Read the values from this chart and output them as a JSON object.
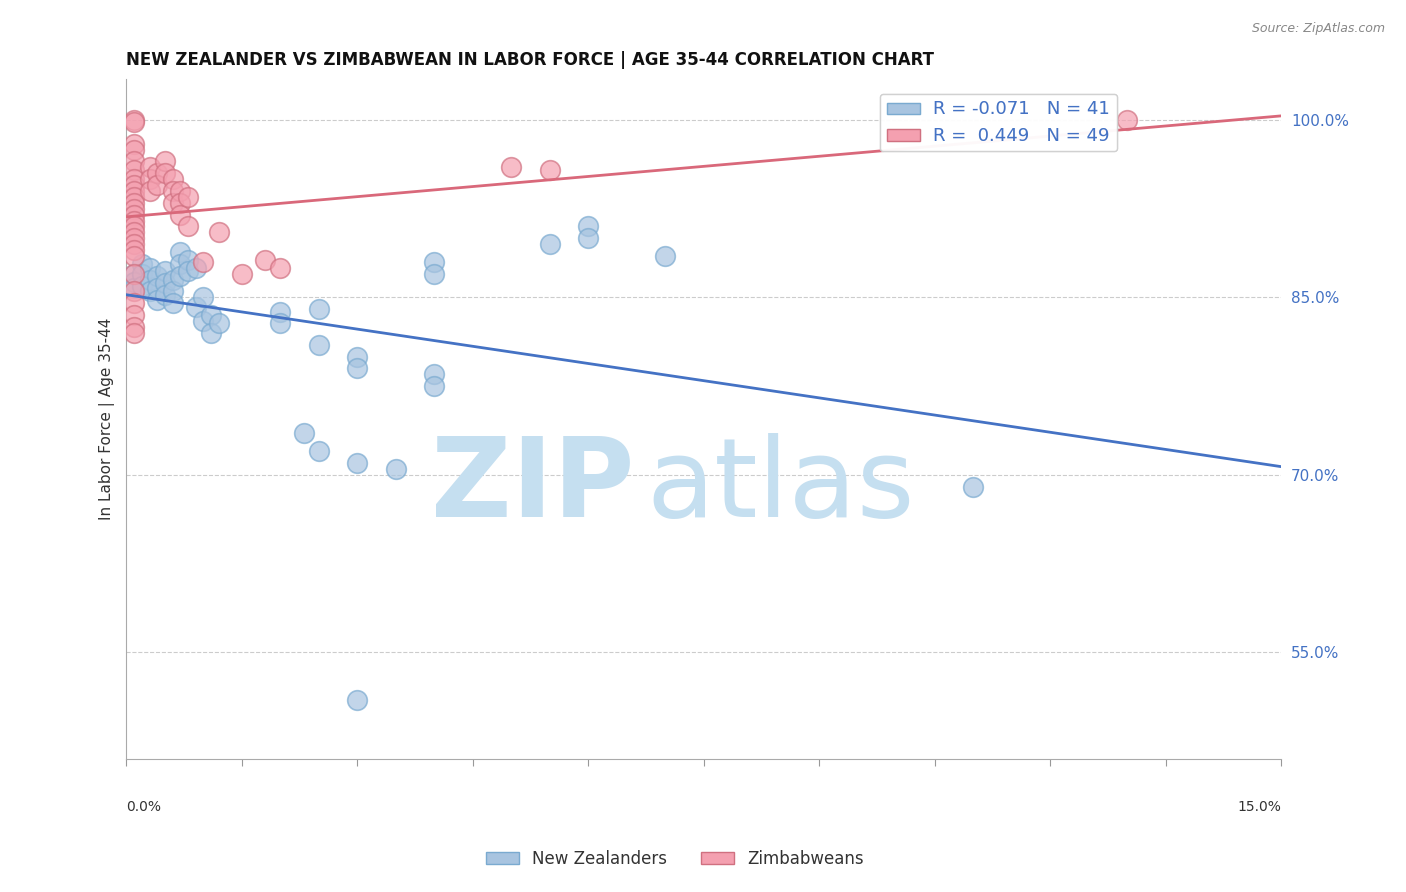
{
  "title": "NEW ZEALANDER VS ZIMBABWEAN IN LABOR FORCE | AGE 35-44 CORRELATION CHART",
  "source": "Source: ZipAtlas.com",
  "ylabel": "In Labor Force | Age 35-44",
  "ylabel_ticks": [
    "55.0%",
    "70.0%",
    "85.0%",
    "100.0%"
  ],
  "xmin": 0.0,
  "xmax": 0.15,
  "ymin": 0.46,
  "ymax": 1.035,
  "r_nz": -0.071,
  "n_nz": 41,
  "r_zim": 0.449,
  "n_zim": 49,
  "nz_color": "#a8c4e0",
  "zim_color": "#f4a0b0",
  "nz_line_color": "#4472c4",
  "zim_line_color": "#d9687a",
  "nz_points": [
    [
      0.001,
      0.87
    ],
    [
      0.001,
      0.863
    ],
    [
      0.001,
      0.858
    ],
    [
      0.002,
      0.878
    ],
    [
      0.002,
      0.87
    ],
    [
      0.002,
      0.86
    ],
    [
      0.003,
      0.875
    ],
    [
      0.003,
      0.865
    ],
    [
      0.003,
      0.855
    ],
    [
      0.004,
      0.868
    ],
    [
      0.004,
      0.858
    ],
    [
      0.004,
      0.848
    ],
    [
      0.005,
      0.872
    ],
    [
      0.005,
      0.862
    ],
    [
      0.005,
      0.852
    ],
    [
      0.006,
      0.865
    ],
    [
      0.006,
      0.855
    ],
    [
      0.006,
      0.845
    ],
    [
      0.007,
      0.888
    ],
    [
      0.007,
      0.878
    ],
    [
      0.007,
      0.868
    ],
    [
      0.008,
      0.882
    ],
    [
      0.008,
      0.872
    ],
    [
      0.009,
      0.875
    ],
    [
      0.009,
      0.842
    ],
    [
      0.01,
      0.85
    ],
    [
      0.01,
      0.83
    ],
    [
      0.011,
      0.835
    ],
    [
      0.011,
      0.82
    ],
    [
      0.012,
      0.828
    ],
    [
      0.02,
      0.838
    ],
    [
      0.02,
      0.828
    ],
    [
      0.025,
      0.84
    ],
    [
      0.025,
      0.81
    ],
    [
      0.03,
      0.8
    ],
    [
      0.03,
      0.79
    ],
    [
      0.04,
      0.88
    ],
    [
      0.04,
      0.87
    ],
    [
      0.06,
      0.91
    ],
    [
      0.06,
      0.9
    ],
    [
      0.11,
      0.69
    ]
  ],
  "nz_outlier_points": [
    [
      0.023,
      0.735
    ],
    [
      0.025,
      0.72
    ],
    [
      0.03,
      0.71
    ],
    [
      0.035,
      0.705
    ],
    [
      0.04,
      0.785
    ],
    [
      0.04,
      0.775
    ],
    [
      0.055,
      0.895
    ],
    [
      0.07,
      0.885
    ],
    [
      0.03,
      0.51
    ]
  ],
  "zim_points": [
    [
      0.001,
      1.0
    ],
    [
      0.001,
      0.998
    ],
    [
      0.001,
      0.98
    ],
    [
      0.001,
      0.975
    ],
    [
      0.001,
      0.965
    ],
    [
      0.001,
      0.958
    ],
    [
      0.001,
      0.95
    ],
    [
      0.001,
      0.945
    ],
    [
      0.001,
      0.94
    ],
    [
      0.001,
      0.935
    ],
    [
      0.001,
      0.93
    ],
    [
      0.001,
      0.925
    ],
    [
      0.001,
      0.92
    ],
    [
      0.001,
      0.915
    ],
    [
      0.001,
      0.91
    ],
    [
      0.001,
      0.905
    ],
    [
      0.001,
      0.9
    ],
    [
      0.001,
      0.895
    ],
    [
      0.001,
      0.89
    ],
    [
      0.001,
      0.885
    ],
    [
      0.001,
      0.87
    ],
    [
      0.001,
      0.855
    ],
    [
      0.001,
      0.845
    ],
    [
      0.001,
      0.835
    ],
    [
      0.001,
      0.825
    ],
    [
      0.001,
      0.82
    ],
    [
      0.003,
      0.96
    ],
    [
      0.003,
      0.95
    ],
    [
      0.003,
      0.94
    ],
    [
      0.004,
      0.955
    ],
    [
      0.004,
      0.945
    ],
    [
      0.005,
      0.965
    ],
    [
      0.005,
      0.955
    ],
    [
      0.006,
      0.95
    ],
    [
      0.006,
      0.94
    ],
    [
      0.006,
      0.93
    ],
    [
      0.007,
      0.94
    ],
    [
      0.007,
      0.93
    ],
    [
      0.007,
      0.92
    ],
    [
      0.008,
      0.935
    ],
    [
      0.008,
      0.91
    ],
    [
      0.01,
      0.88
    ],
    [
      0.012,
      0.905
    ],
    [
      0.015,
      0.87
    ],
    [
      0.018,
      0.882
    ],
    [
      0.02,
      0.875
    ],
    [
      0.05,
      0.96
    ],
    [
      0.055,
      0.958
    ],
    [
      0.13,
      1.0
    ]
  ],
  "background_color": "#ffffff",
  "grid_color": "#cccccc",
  "watermark_zip_color": "#c5dff0",
  "watermark_atlas_color": "#c5dff0"
}
